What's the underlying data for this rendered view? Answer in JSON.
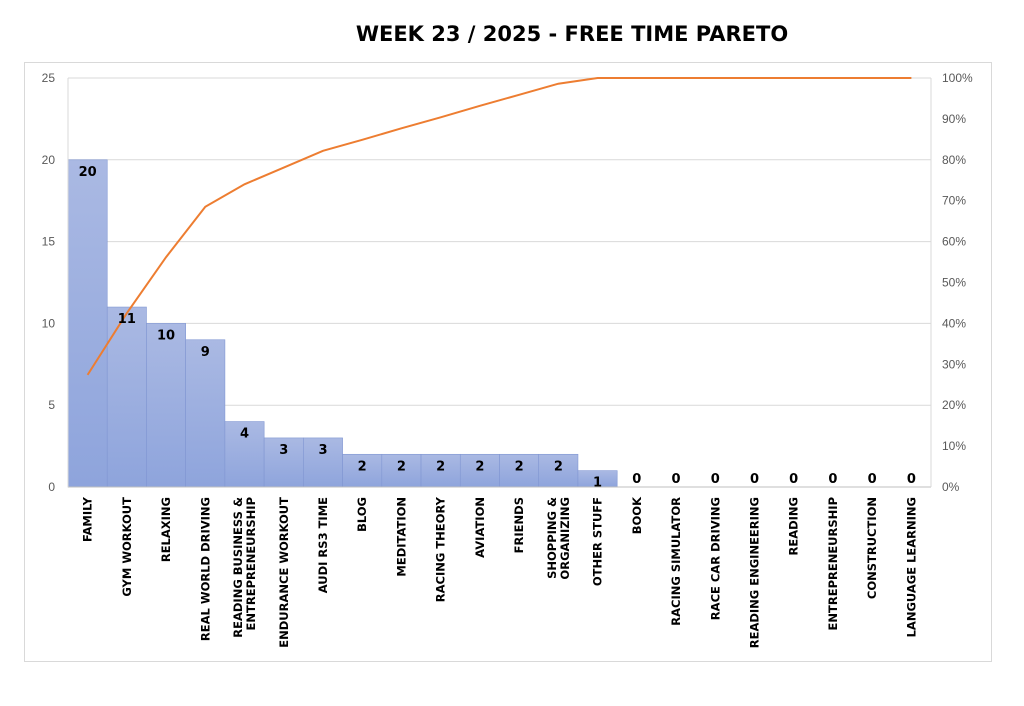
{
  "chart_data": {
    "type": "bar",
    "title": "WEEK  23  / 2025   - FREE TIME PARETO",
    "categories": [
      "FAMILY",
      "GYM WORKOUT",
      "RELAXING",
      "REAL WORLD DRIVING",
      "READING BUSINESS &\nENTREPRENEURSHIP",
      "ENDURANCE WORKOUT",
      "AUDI RS3 TIME",
      "BLOG",
      "MEDITATION",
      "RACING THEORY",
      "AVIATION",
      "FRIENDS",
      "SHOPPING &\nORGANIZING",
      "OTHER STUFF",
      "BOOK",
      "RACING SIMULATOR",
      "RACE CAR DRIVING",
      "READING ENGINEERING",
      "READING",
      "ENTREPRENEURSHIP",
      "CONSTRUCTION",
      "LANGUAGE LEARNING"
    ],
    "series": [
      {
        "type": "bar",
        "axis": "left",
        "values": [
          20,
          11,
          10,
          9,
          4,
          3,
          3,
          2,
          2,
          2,
          2,
          2,
          2,
          1,
          0,
          0,
          0,
          0,
          0,
          0,
          0,
          0
        ],
        "color": "#8ea4dc"
      },
      {
        "type": "line",
        "axis": "right",
        "values": [
          27.4,
          42.5,
          56.2,
          68.5,
          74.0,
          78.1,
          82.2,
          84.9,
          87.7,
          90.4,
          93.2,
          95.9,
          98.6,
          100,
          100,
          100,
          100,
          100,
          100,
          100,
          100,
          100
        ],
        "color": "#ed7d31"
      }
    ],
    "y_left": {
      "ylim": [
        0,
        25
      ],
      "ticks": [
        "0",
        "5",
        "10",
        "15",
        "20",
        "25"
      ]
    },
    "y_right": {
      "ylim": [
        0,
        100
      ],
      "ticks": [
        "0%",
        "10%",
        "20%",
        "30%",
        "40%",
        "50%",
        "60%",
        "70%",
        "80%",
        "90%",
        "100%"
      ]
    },
    "grid": true,
    "legend": "none",
    "data_labels": true
  }
}
